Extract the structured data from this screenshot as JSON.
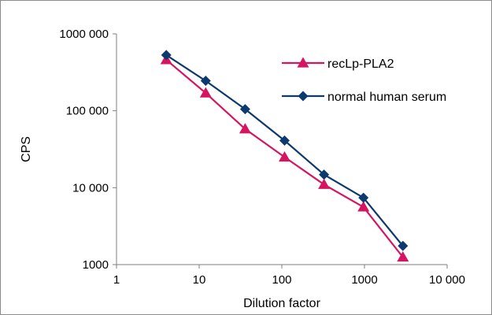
{
  "chart_data": {
    "type": "line",
    "xlabel": "Dilution factor",
    "ylabel": "CPS",
    "x_scale": "log",
    "y_scale": "log",
    "xlim": [
      1,
      10000
    ],
    "ylim": [
      1000,
      1000000
    ],
    "x_tick_labels": [
      "1",
      "10",
      "100",
      "1000",
      "10 000"
    ],
    "y_tick_labels": [
      "1000",
      "10 000",
      "100 000",
      "1000 000"
    ],
    "x_ticks": [
      1,
      10,
      100,
      1000,
      10000
    ],
    "y_ticks": [
      1000,
      10000,
      100000,
      1000000
    ],
    "grid": false,
    "legend_position": "top-right",
    "series": [
      {
        "name": "recLp-PLA2",
        "color": "#d6145f",
        "marker": "triangle",
        "x": [
          4,
          12,
          36,
          108,
          324,
          972,
          2916
        ],
        "y": [
          460000,
          170000,
          58000,
          25000,
          11000,
          5600,
          1250
        ]
      },
      {
        "name": "normal human serum",
        "color": "#0d3a6e",
        "marker": "diamond",
        "x": [
          4,
          12,
          36,
          108,
          324,
          972,
          2916
        ],
        "y": [
          530000,
          245000,
          105000,
          41000,
          14800,
          7400,
          1750
        ]
      }
    ]
  }
}
